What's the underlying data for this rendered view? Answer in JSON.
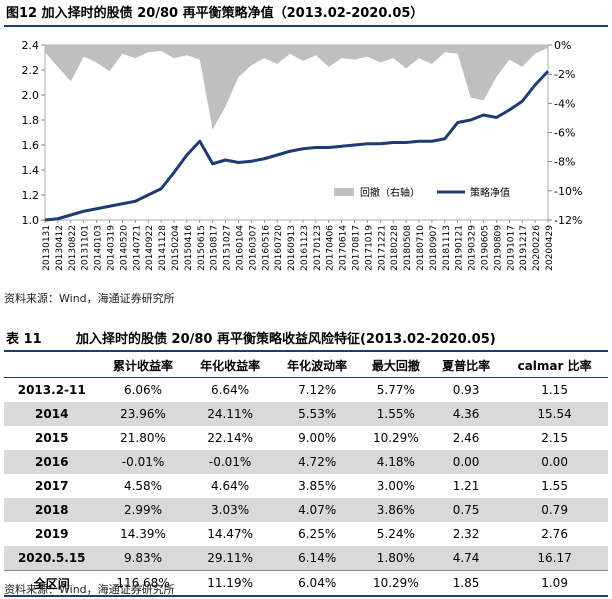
{
  "figure": {
    "title": "图12 加入择时的股债 20/80 再平衡策略净值（2013.02-2020.05）"
  },
  "chart_data": {
    "type": "area+line",
    "title": "加入择时的股债 20/80 再平衡策略净值（2013.02-2020.05）",
    "left_axis": {
      "min": 1.0,
      "max": 2.4,
      "ticks": [
        "1.0",
        "1.2",
        "1.4",
        "1.6",
        "1.8",
        "2.0",
        "2.2",
        "2.4"
      ]
    },
    "right_axis": {
      "min": -12,
      "max": 0,
      "ticks": [
        "0%",
        "-2%",
        "-4%",
        "-6%",
        "-8%",
        "-10%",
        "-12%"
      ]
    },
    "x_ticks": [
      "20130131",
      "20130412",
      "20130822",
      "20131101",
      "20140103",
      "20140319",
      "20140520",
      "20140721",
      "20140922",
      "20141128",
      "20150204",
      "20150416",
      "20150615",
      "20150817",
      "20151027",
      "20160104",
      "20160307",
      "20160516",
      "20160720",
      "20160913",
      "20161123",
      "20170123",
      "20170406",
      "20170614",
      "20170817",
      "20171019",
      "20171221",
      "20180228",
      "20180508",
      "20180710",
      "20180907",
      "20181113",
      "20190121",
      "20190329",
      "20190605",
      "20190809",
      "20191017",
      "20191217",
      "20200226",
      "20200429"
    ],
    "legend": {
      "drawdown": "回撤（右轴）",
      "nav": "策略净值"
    },
    "series": [
      {
        "name": "策略净值",
        "axis": "left",
        "color": "#1f3b73",
        "x": [
          0,
          1,
          2,
          3,
          4,
          5,
          6,
          7,
          8,
          9,
          10,
          11,
          12,
          13,
          14,
          15,
          16,
          17,
          18,
          19,
          20,
          21,
          22,
          23,
          24,
          25,
          26,
          27,
          28,
          29,
          30,
          31,
          32,
          33,
          34,
          35,
          36,
          37,
          38,
          39
        ],
        "values": [
          1.0,
          1.01,
          1.04,
          1.07,
          1.09,
          1.11,
          1.13,
          1.15,
          1.2,
          1.25,
          1.38,
          1.52,
          1.63,
          1.45,
          1.48,
          1.46,
          1.47,
          1.49,
          1.52,
          1.55,
          1.57,
          1.58,
          1.58,
          1.59,
          1.6,
          1.61,
          1.61,
          1.62,
          1.62,
          1.63,
          1.63,
          1.65,
          1.78,
          1.8,
          1.84,
          1.82,
          1.88,
          1.95,
          2.08,
          2.19
        ]
      },
      {
        "name": "回撤（右轴）",
        "axis": "right",
        "color": "#bfbfbf",
        "x": [
          0,
          1,
          2,
          3,
          4,
          5,
          6,
          7,
          8,
          9,
          10,
          11,
          12,
          13,
          14,
          15,
          16,
          17,
          18,
          19,
          20,
          21,
          22,
          23,
          24,
          25,
          26,
          27,
          28,
          29,
          30,
          31,
          32,
          33,
          34,
          35,
          36,
          37,
          38,
          39
        ],
        "values": [
          -0.5,
          -1.5,
          -2.5,
          -0.8,
          -1.2,
          -1.8,
          -0.6,
          -0.9,
          -0.5,
          -0.4,
          -0.9,
          -0.7,
          -1.0,
          -5.8,
          -4.2,
          -2.2,
          -1.4,
          -0.9,
          -1.3,
          -0.6,
          -1.1,
          -0.7,
          -1.5,
          -0.9,
          -1.0,
          -0.8,
          -1.2,
          -0.9,
          -1.6,
          -0.9,
          -1.3,
          -0.5,
          -0.6,
          -3.6,
          -3.8,
          -2.2,
          -1.0,
          -1.5,
          -0.6,
          -0.2
        ]
      }
    ]
  },
  "source_label": "资料来源：Wind，海通证券研究所",
  "table": {
    "number": "表 11",
    "title": "加入择时的股债 20/80 再平衡策略收益风险特征(2013.02-2020.05)",
    "headers": [
      "",
      "累计收益率",
      "年化收益率",
      "年化波动率",
      "最大回撤",
      "夏普比率",
      "calmar 比率"
    ],
    "rows": [
      {
        "label": "2013.2-11",
        "shaded": false,
        "cells": [
          "6.06%",
          "6.64%",
          "7.12%",
          "5.77%",
          "0.93",
          "1.15"
        ]
      },
      {
        "label": "2014",
        "shaded": true,
        "cells": [
          "23.96%",
          "24.11%",
          "5.53%",
          "1.55%",
          "4.36",
          "15.54"
        ]
      },
      {
        "label": "2015",
        "shaded": false,
        "cells": [
          "21.80%",
          "22.14%",
          "9.00%",
          "10.29%",
          "2.46",
          "2.15"
        ]
      },
      {
        "label": "2016",
        "shaded": true,
        "cells": [
          "-0.01%",
          "-0.01%",
          "4.72%",
          "4.18%",
          "0.00",
          "0.00"
        ]
      },
      {
        "label": "2017",
        "shaded": false,
        "cells": [
          "4.58%",
          "4.64%",
          "3.85%",
          "3.00%",
          "1.21",
          "1.55"
        ]
      },
      {
        "label": "2018",
        "shaded": true,
        "cells": [
          "2.99%",
          "3.03%",
          "4.07%",
          "3.86%",
          "0.75",
          "0.79"
        ]
      },
      {
        "label": "2019",
        "shaded": false,
        "cells": [
          "14.39%",
          "14.47%",
          "6.25%",
          "5.24%",
          "2.32",
          "2.76"
        ]
      },
      {
        "label": "2020.5.15",
        "shaded": true,
        "cells": [
          "9.83%",
          "29.11%",
          "6.14%",
          "1.80%",
          "4.74",
          "16.17"
        ]
      },
      {
        "label": "全区间",
        "shaded": false,
        "total": true,
        "cells": [
          "116.68%",
          "11.19%",
          "6.04%",
          "10.29%",
          "1.85",
          "1.09"
        ]
      }
    ]
  }
}
